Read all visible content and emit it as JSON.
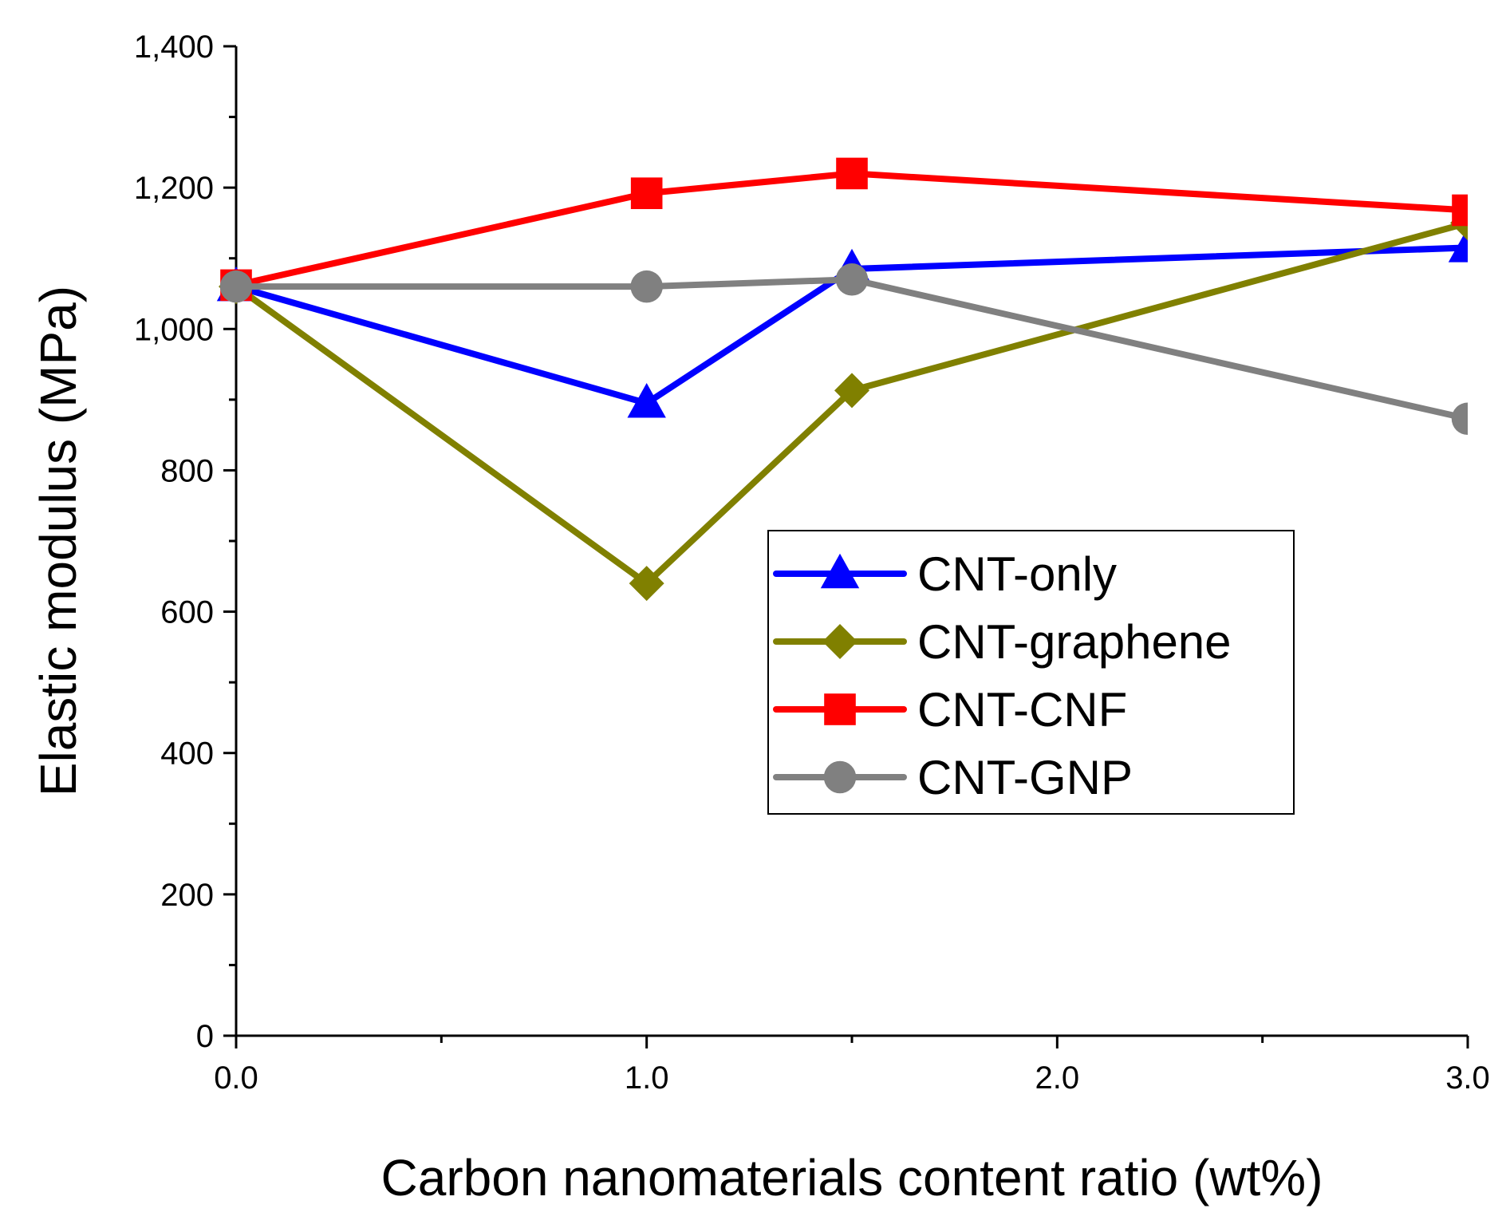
{
  "chart_data": {
    "type": "line",
    "title": "",
    "xlabel": "Carbon nanomaterials content ratio (wt%)",
    "ylabel": "Elastic modulus (MPa)",
    "xlim": [
      0,
      3.0
    ],
    "ylim": [
      0,
      1400
    ],
    "x_ticks": [
      0,
      1,
      2,
      3
    ],
    "x_tick_labels": [
      "0.0",
      "1.0",
      "2.0",
      "3.0"
    ],
    "y_ticks": [
      0,
      200,
      400,
      600,
      800,
      1000,
      1200,
      1400
    ],
    "y_tick_labels": [
      "0",
      "200",
      "400",
      "600",
      "800",
      "1,000",
      "1,200",
      "1,400"
    ],
    "grid": false,
    "legend_position": "center-right",
    "x": [
      0,
      1.0,
      1.5,
      3.0
    ],
    "series": [
      {
        "name": "CNT-only",
        "color": "#0000ff",
        "marker": "triangle",
        "values": [
          1060,
          895,
          1085,
          1115
        ]
      },
      {
        "name": "CNT-graphene",
        "color": "#808000",
        "marker": "diamond",
        "values": [
          1060,
          640,
          913,
          1150
        ]
      },
      {
        "name": "CNT-CNF",
        "color": "#ff0000",
        "marker": "square",
        "values": [
          1062,
          1192,
          1220,
          1168
        ]
      },
      {
        "name": "CNT-GNP",
        "color": "#808080",
        "marker": "circle",
        "values": [
          1060,
          1060,
          1070,
          873
        ]
      }
    ]
  }
}
